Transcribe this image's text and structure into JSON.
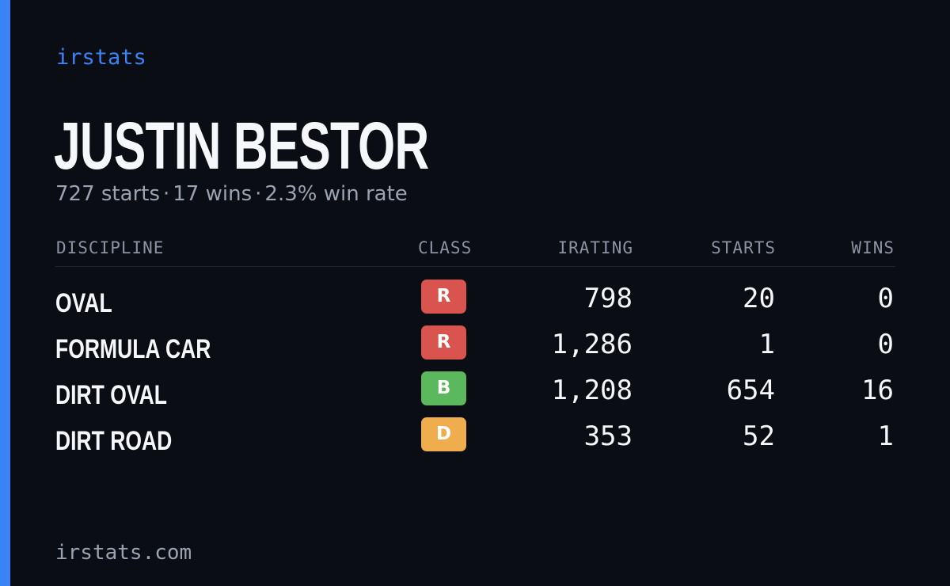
{
  "brand": "irstats",
  "player": {
    "name": "JUSTIN BESTOR",
    "starts": "727 starts",
    "wins": "17 wins",
    "win_rate": "2.3% win rate",
    "separator": "·"
  },
  "table": {
    "headers": {
      "discipline": "DISCIPLINE",
      "class": "CLASS",
      "irating": "IRATING",
      "starts": "STARTS",
      "wins": "WINS"
    },
    "rows": [
      {
        "discipline": "OVAL",
        "class": "R",
        "class_color": "#d9534f",
        "irating": "798",
        "starts": "20",
        "wins": "0"
      },
      {
        "discipline": "FORMULA CAR",
        "class": "R",
        "class_color": "#d9534f",
        "irating": "1,286",
        "starts": "1",
        "wins": "0"
      },
      {
        "discipline": "DIRT OVAL",
        "class": "B",
        "class_color": "#5cb85c",
        "irating": "1,208",
        "starts": "654",
        "wins": "16"
      },
      {
        "discipline": "DIRT ROAD",
        "class": "D",
        "class_color": "#f0ad4e",
        "irating": "353",
        "starts": "52",
        "wins": "1"
      }
    ]
  },
  "footer": "irstats.com",
  "colors": {
    "accent": "#3b82f6",
    "background": "#0a0d14"
  }
}
